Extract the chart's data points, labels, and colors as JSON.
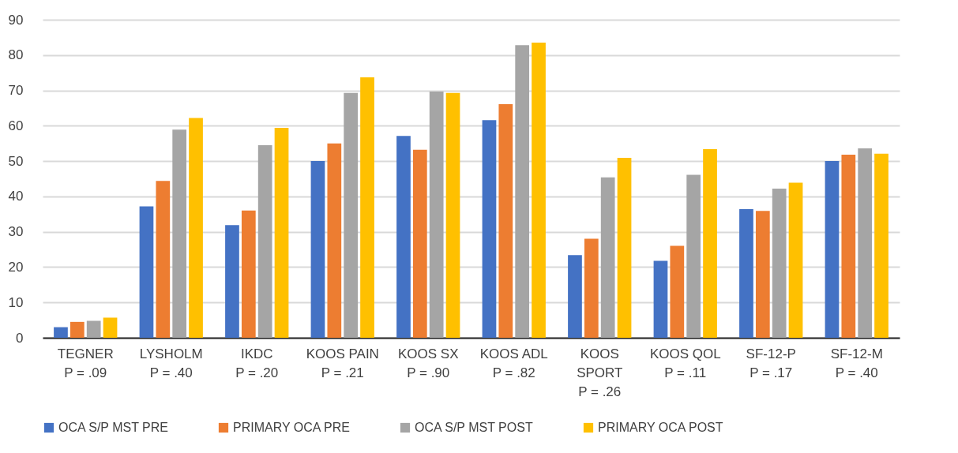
{
  "chart_data": {
    "type": "bar",
    "categories": [
      "TEGNER\nP = .09",
      "LYSHOLM\nP = .40",
      "IKDC\nP = .20",
      "KOOS PAIN\nP = .21",
      "KOOS SX\nP = .90",
      "KOOS ADL\nP = .82",
      "KOOS\nSPORT\nP = .26",
      "KOOS QOL\nP = .11",
      "SF-12-P\nP = .17",
      "SF-12-M\nP = .40"
    ],
    "series": [
      {
        "name": "OCA S/P MST PRE",
        "color": "#4472c4",
        "values": [
          3.0,
          37.2,
          31.9,
          50.0,
          57.1,
          61.6,
          23.4,
          21.8,
          36.4,
          50.0
        ]
      },
      {
        "name": "PRIMARY OCA PRE",
        "color": "#ed7d31",
        "values": [
          4.5,
          44.4,
          36.0,
          55.0,
          53.2,
          66.1,
          28.0,
          26.0,
          35.9,
          51.8
        ]
      },
      {
        "name": "OCA S/P MST POST",
        "color": "#a5a5a5",
        "values": [
          4.8,
          58.9,
          54.5,
          69.3,
          69.7,
          82.8,
          45.4,
          46.1,
          42.2,
          53.6
        ]
      },
      {
        "name": "PRIMARY OCA POST",
        "color": "#ffc000",
        "values": [
          5.7,
          62.2,
          59.4,
          73.7,
          69.3,
          83.5,
          50.9,
          53.4,
          43.9,
          52.1
        ]
      }
    ],
    "ylim": [
      0,
      90
    ],
    "yticks": [
      0,
      10,
      20,
      30,
      40,
      50,
      60,
      70,
      80,
      90
    ],
    "grid": "y",
    "legend": "bottom"
  }
}
